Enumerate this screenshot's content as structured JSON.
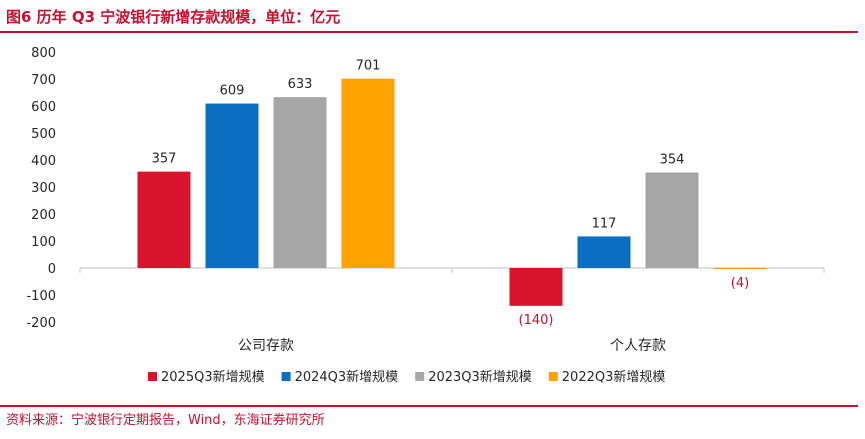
{
  "title": "图6  历年 Q3 宁波银行新增存款规模，单位：亿元",
  "source": "资料来源：宁波银行定期报告，Wind，东海证券研究所",
  "colors": {
    "accent": "#c8102e",
    "axis": "#bfbfbf",
    "text": "#262626",
    "negative_label": "#c8102e"
  },
  "chart_data": {
    "type": "bar",
    "title": "历年 Q3 宁波银行新增存款规模，单位：亿元",
    "xlabel": "",
    "ylabel": "",
    "ylim": [
      -200,
      800
    ],
    "yticks": [
      800,
      700,
      600,
      500,
      400,
      300,
      200,
      100,
      0,
      -100,
      -200
    ],
    "ytick_labels": [
      "800",
      "700",
      "600",
      "500",
      "400",
      "300",
      "200",
      "100",
      "0",
      "-100",
      "-200"
    ],
    "categories": [
      "公司存款",
      "个人存款"
    ],
    "series": [
      {
        "name": "2025Q3新增规模",
        "color": "#d7142b",
        "values": [
          357,
          -140
        ],
        "labels": [
          "357",
          "(140)"
        ]
      },
      {
        "name": "2024Q3新增规模",
        "color": "#0a6fc2",
        "values": [
          609,
          117
        ],
        "labels": [
          "609",
          "117"
        ]
      },
      {
        "name": "2023Q3新增规模",
        "color": "#a6a6a6",
        "values": [
          633,
          354
        ],
        "labels": [
          "633",
          "354"
        ]
      },
      {
        "name": "2022Q3新增规模",
        "color": "#ffa200",
        "values": [
          701,
          -4
        ],
        "labels": [
          "701",
          "(4)"
        ]
      }
    ],
    "legend_position": "bottom",
    "grid": false
  }
}
